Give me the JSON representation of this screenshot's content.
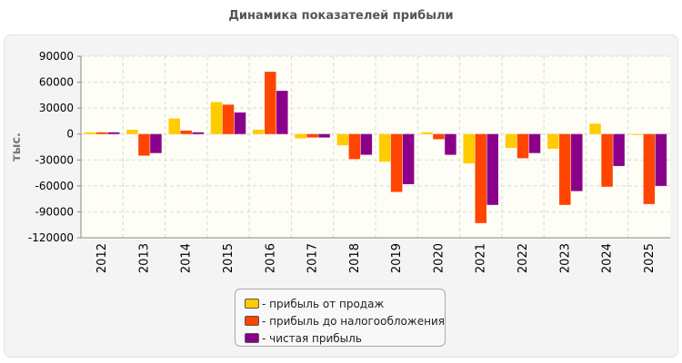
{
  "colors": {
    "sales": "#ffcc00",
    "pretax": "#ff4500",
    "net": "#8b008b"
  },
  "chart_data": {
    "type": "bar",
    "title": "Динамика показателей прибыли",
    "xlabel": "",
    "ylabel": "тыс.",
    "ylim": [
      -120000,
      90000
    ],
    "yticks": [
      90000,
      60000,
      30000,
      0,
      -30000,
      -60000,
      -90000,
      -120000
    ],
    "grid": true,
    "legend_position": "bottom",
    "categories": [
      "2012",
      "2013",
      "2014",
      "2015",
      "2016",
      "2017",
      "2018",
      "2019",
      "2020",
      "2021",
      "2022",
      "2023",
      "2024",
      "2025"
    ],
    "series": [
      {
        "name": "- прибыль от продаж",
        "values": [
          2000,
          5000,
          18000,
          37000,
          5000,
          -5000,
          -13000,
          -32000,
          2000,
          -34000,
          -16000,
          -17000,
          12000,
          -1000
        ]
      },
      {
        "name": "- прибыль до налогообложения",
        "values": [
          2000,
          -25000,
          4000,
          34000,
          72000,
          -4000,
          -29000,
          -67000,
          -6000,
          -103000,
          -28000,
          -82000,
          -61000,
          -81000
        ]
      },
      {
        "name": "- чистая прибыль",
        "values": [
          2000,
          -22000,
          2000,
          25000,
          50000,
          -4000,
          -24000,
          -58000,
          -24000,
          -82000,
          -22000,
          -66000,
          -37000,
          -60000
        ]
      }
    ]
  }
}
